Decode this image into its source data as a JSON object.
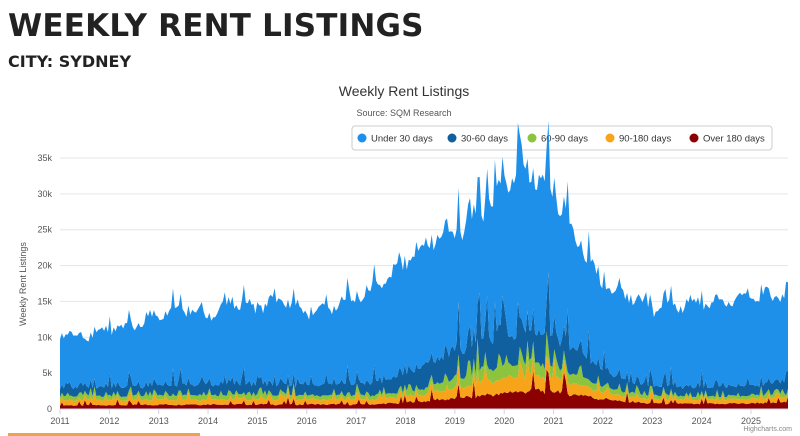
{
  "header": {
    "title": "WEEKLY RENT LISTINGS",
    "subtitle": "CITY: SYDNEY"
  },
  "chart_data": {
    "type": "area",
    "stacked": true,
    "title": "Weekly Rent Listings",
    "subtitle": "Source: SQM Research",
    "ylabel": "Weekly Rent Listings",
    "xlabel": "",
    "ylim": [
      0,
      35000
    ],
    "xlim": [
      2011,
      2025.75
    ],
    "y_ticks": [
      0,
      5000,
      10000,
      15000,
      20000,
      25000,
      30000,
      35000
    ],
    "y_tick_labels": [
      "0",
      "5k",
      "10k",
      "15k",
      "20k",
      "25k",
      "30k",
      "35k"
    ],
    "x_ticks": [
      2011,
      2012,
      2013,
      2014,
      2015,
      2016,
      2017,
      2018,
      2019,
      2020,
      2021,
      2022,
      2023,
      2024,
      2025
    ],
    "x_tick_labels": [
      "2011",
      "2012",
      "2013",
      "2014",
      "2015",
      "2016",
      "2017",
      "2018",
      "2019",
      "2020",
      "2021",
      "2022",
      "2023",
      "2024",
      "2025"
    ],
    "grid": true,
    "legend_position": "top-right",
    "credit": "Highcharts.com",
    "series": [
      {
        "name": "Over 180 days",
        "color": "#8b0000",
        "x": [
          2011,
          2012,
          2013,
          2014,
          2015,
          2016,
          2017,
          2017.5,
          2018,
          2018.5,
          2019,
          2019.5,
          2020,
          2020.5,
          2021,
          2021.5,
          2022,
          2022.5,
          2023,
          2024,
          2025,
          2025.75
        ],
        "values": [
          500,
          550,
          600,
          650,
          650,
          650,
          650,
          700,
          900,
          1200,
          1500,
          1800,
          2200,
          2600,
          2500,
          2000,
          1400,
          1000,
          800,
          700,
          800,
          900
        ]
      },
      {
        "name": "90-180 days",
        "color": "#f7a41b",
        "x": [
          2011,
          2012,
          2013,
          2014,
          2015,
          2016,
          2017,
          2017.5,
          2018,
          2018.5,
          2019,
          2019.5,
          2020,
          2020.5,
          2021,
          2021.5,
          2022,
          2022.5,
          2023,
          2024,
          2025,
          2025.75
        ],
        "values": [
          700,
          700,
          700,
          700,
          700,
          700,
          700,
          700,
          800,
          1000,
          1400,
          1800,
          2000,
          2200,
          2000,
          1500,
          1000,
          700,
          600,
          550,
          600,
          650
        ]
      },
      {
        "name": "60-90 days",
        "color": "#8cc43d",
        "x": [
          2011,
          2012,
          2013,
          2014,
          2015,
          2016,
          2017,
          2017.5,
          2018,
          2018.5,
          2019,
          2019.5,
          2020,
          2020.5,
          2021,
          2021.5,
          2022,
          2022.5,
          2023,
          2024,
          2025,
          2025.75
        ],
        "values": [
          600,
          600,
          600,
          600,
          600,
          600,
          600,
          600,
          700,
          900,
          1400,
          1800,
          1700,
          2000,
          1600,
          1200,
          800,
          600,
          500,
          450,
          500,
          550
        ]
      },
      {
        "name": "30-60 days",
        "color": "#10609f",
        "x": [
          2011,
          2012,
          2013,
          2014,
          2015,
          2016,
          2017,
          2017.5,
          2018,
          2018.5,
          2019,
          2019.5,
          2020,
          2020.5,
          2021,
          2021.5,
          2022,
          2022.5,
          2023,
          2024,
          2025,
          2025.75
        ],
        "values": [
          1200,
          1300,
          1400,
          1500,
          1500,
          1400,
          1600,
          1800,
          2600,
          3200,
          4000,
          4500,
          4200,
          4600,
          4400,
          3500,
          2400,
          1600,
          1300,
          1300,
          1400,
          1500
        ]
      },
      {
        "name": "Under 30 days",
        "color": "#1e90ea",
        "x": [
          2011,
          2011.5,
          2012,
          2012.5,
          2013,
          2013.5,
          2014,
          2014.5,
          2015,
          2015.5,
          2016,
          2016.5,
          2017,
          2017.5,
          2018,
          2018.5,
          2019,
          2019.5,
          2020,
          2020.3,
          2020.6,
          2021,
          2021.5,
          2022,
          2022.3,
          2022.6,
          2023,
          2023.5,
          2024,
          2024.5,
          2025,
          2025.4,
          2025.75
        ],
        "values": [
          7500,
          6700,
          8000,
          8300,
          9800,
          10500,
          9500,
          11300,
          10500,
          11700,
          10000,
          10700,
          11800,
          13500,
          15500,
          16800,
          16500,
          17500,
          19500,
          23500,
          21300,
          19800,
          15000,
          11700,
          11800,
          11500,
          10600,
          11300,
          11700,
          11700,
          12800,
          12000,
          11900
        ]
      }
    ]
  }
}
